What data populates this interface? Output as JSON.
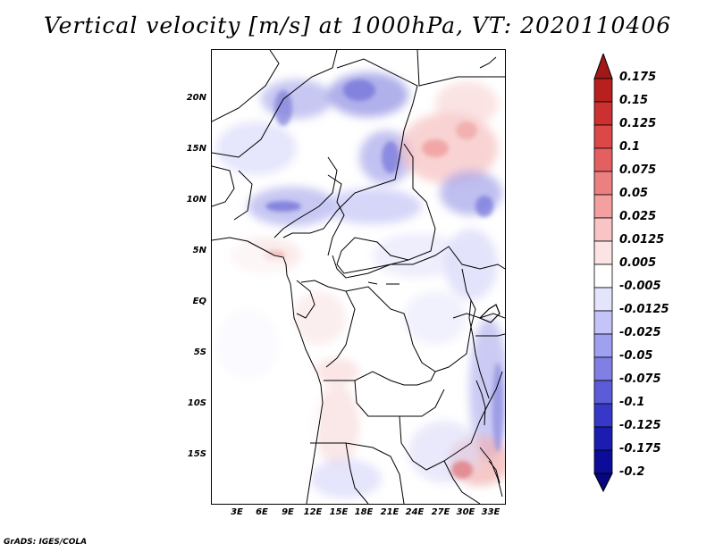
{
  "title": "Vertical velocity [m/s] at 1000hPa, VT: 2020110406",
  "credit": "GrADS: IGES/COLA",
  "map": {
    "lat_labels": [
      "20N",
      "15N",
      "10N",
      "5N",
      "EQ",
      "5S",
      "10S",
      "15S"
    ],
    "lat_values": [
      20,
      15,
      10,
      5,
      0,
      -5,
      -10,
      -15
    ],
    "lat_range": [
      -19.7,
      24.8
    ],
    "lon_labels": [
      "3E",
      "6E",
      "9E",
      "12E",
      "15E",
      "18E",
      "21E",
      "24E",
      "27E",
      "30E",
      "33E"
    ],
    "lon_values": [
      3,
      6,
      9,
      12,
      15,
      18,
      21,
      24,
      27,
      30,
      33
    ],
    "lon_range": [
      0,
      34.5
    ]
  },
  "colorbar": {
    "labels": [
      "0.175",
      "0.15",
      "0.125",
      "0.1",
      "0.075",
      "0.05",
      "0.025",
      "0.0125",
      "0.005",
      "-0.005",
      "-0.0125",
      "-0.025",
      "-0.05",
      "-0.075",
      "-0.1",
      "-0.125",
      "-0.175",
      "-0.2"
    ],
    "colors": [
      "#a01818",
      "#b82020",
      "#cc3030",
      "#dc4848",
      "#e46060",
      "#ec8080",
      "#f4a0a0",
      "#f8c4c4",
      "#fce4e4",
      "#ffffff",
      "#e4e4fc",
      "#c4c4f8",
      "#a0a0f0",
      "#8080e4",
      "#5c5cd8",
      "#3838c8",
      "#1c1cb0",
      "#0c0c98",
      "#060680"
    ]
  }
}
